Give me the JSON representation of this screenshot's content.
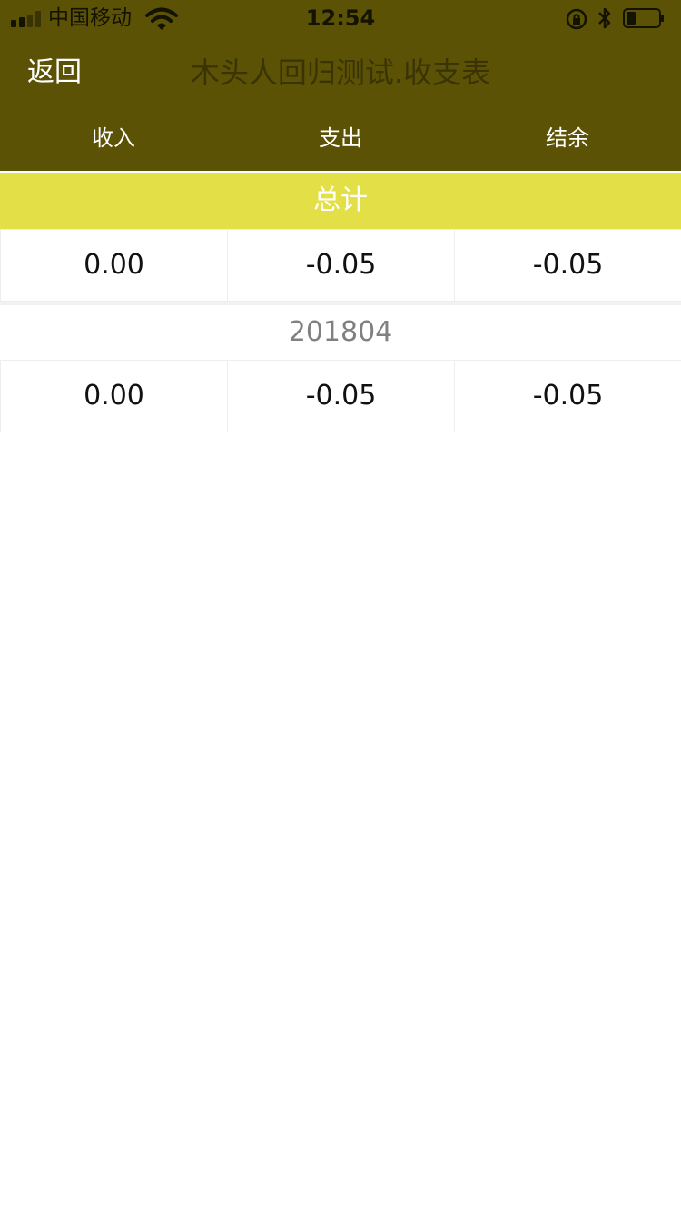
{
  "status_bar": {
    "carrier": "中国移动",
    "time": "12:54"
  },
  "nav": {
    "back_label": "返回",
    "title": "木头人回归测试.收支表"
  },
  "columns": [
    "收入",
    "支出",
    "结余"
  ],
  "total": {
    "label": "总计",
    "values": [
      "0.00",
      "-0.05",
      "-0.05"
    ]
  },
  "months": [
    {
      "label": "201804",
      "values": [
        "0.00",
        "-0.05",
        "-0.05"
      ]
    }
  ],
  "colors": {
    "header_bg": "#5c5206",
    "total_bar_bg": "#e3df46",
    "title_text": "#3a3404"
  },
  "icons": {
    "signal": "signal-bars-icon",
    "wifi": "wifi-icon",
    "lock": "orientation-lock-icon",
    "bluetooth": "bluetooth-icon",
    "battery": "battery-icon"
  }
}
